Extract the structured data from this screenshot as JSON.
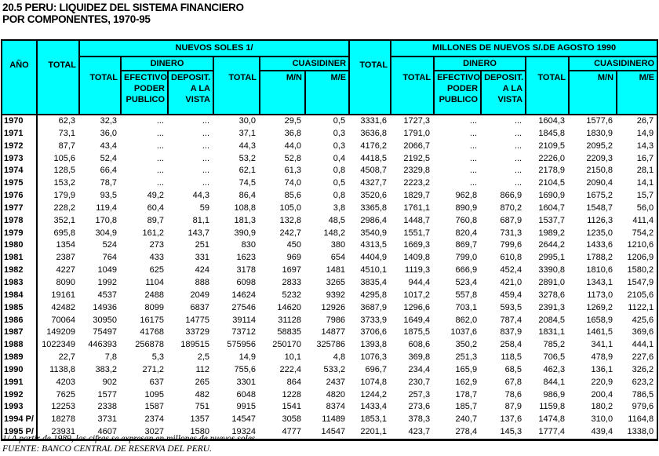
{
  "title": "20.5 PERU: LIQUIDEZ DEL SISTEMA FINANCIERO\nPOR COMPONENTES, 1970-95",
  "colors": {
    "header_bg": "#00FFFF",
    "border": "#000000",
    "text": "#000000",
    "page_bg": "#FFFFFF"
  },
  "table": {
    "header": {
      "ano": "AÑO",
      "total": "TOTAL",
      "group_left": "NUEVOS SOLES 1/",
      "group_right": "MILLONES DE NUEVOS S/.DE AGOSTO 1990",
      "dinero": "DINERO",
      "cuasidinero_left": "CUASIDINER",
      "cuasidinero_right": "CUASIDINERO",
      "sub_total": "TOTAL",
      "efectivo": "EFECTIVO\nPODER\nPUBLICO",
      "deposit": "DEPOSIT.\nA LA\nVISTA",
      "mn": "M/N",
      "me": "M/E"
    },
    "rows": [
      {
        "year": "1970",
        "values": [
          "62,3",
          "32,3",
          "...",
          "...",
          "30,0",
          "29,5",
          "0,5",
          "3331,6",
          "1727,3",
          "...",
          "...",
          "1604,3",
          "1577,6",
          "26,7"
        ]
      },
      {
        "year": "1971",
        "values": [
          "73,1",
          "36,0",
          "...",
          "...",
          "37,1",
          "36,8",
          "0,3",
          "3636,8",
          "1791,0",
          "...",
          "...",
          "1845,8",
          "1830,9",
          "14,9"
        ]
      },
      {
        "year": "1972",
        "values": [
          "87,7",
          "43,4",
          "...",
          "...",
          "44,3",
          "44,0",
          "0,3",
          "4176,2",
          "2066,7",
          "...",
          "...",
          "2109,5",
          "2095,2",
          "14,3"
        ]
      },
      {
        "year": "1973",
        "values": [
          "105,6",
          "52,4",
          "...",
          "...",
          "53,2",
          "52,8",
          "0,4",
          "4418,5",
          "2192,5",
          "...",
          "...",
          "2226,0",
          "2209,3",
          "16,7"
        ]
      },
      {
        "year": "1974",
        "values": [
          "128,5",
          "66,4",
          "...",
          "...",
          "62,1",
          "61,3",
          "0,8",
          "4508,7",
          "2329,8",
          "...",
          "...",
          "2178,9",
          "2150,8",
          "28,1"
        ]
      },
      {
        "year": "1975",
        "values": [
          "153,2",
          "78,7",
          "...",
          "...",
          "74,5",
          "74,0",
          "0,5",
          "4327,7",
          "2223,2",
          "...",
          "...",
          "2104,5",
          "2090,4",
          "14,1"
        ]
      },
      {
        "year": "1976",
        "values": [
          "179,9",
          "93,5",
          "49,2",
          "44,3",
          "86,4",
          "85,6",
          "0,8",
          "3520,6",
          "1829,7",
          "962,8",
          "866,9",
          "1690,9",
          "1675,2",
          "15,7"
        ]
      },
      {
        "year": "1977",
        "values": [
          "228,2",
          "119,4",
          "60,4",
          "59",
          "108,8",
          "105,0",
          "3,8",
          "3365,8",
          "1761,1",
          "890,9",
          "870,2",
          "1604,7",
          "1548,7",
          "56,0"
        ]
      },
      {
        "year": "1978",
        "values": [
          "352,1",
          "170,8",
          "89,7",
          "81,1",
          "181,3",
          "132,8",
          "48,5",
          "2986,4",
          "1448,7",
          "760,8",
          "687,9",
          "1537,7",
          "1126,3",
          "411,4"
        ]
      },
      {
        "year": "1979",
        "values": [
          "695,8",
          "304,9",
          "161,2",
          "143,7",
          "390,9",
          "242,7",
          "148,2",
          "3540,9",
          "1551,7",
          "820,4",
          "731,3",
          "1989,2",
          "1235,0",
          "754,2"
        ]
      },
      {
        "year": "1980",
        "values": [
          "1354",
          "524",
          "273",
          "251",
          "830",
          "450",
          "380",
          "4313,5",
          "1669,3",
          "869,7",
          "799,6",
          "2644,2",
          "1433,6",
          "1210,6"
        ]
      },
      {
        "year": "1981",
        "values": [
          "2387",
          "764",
          "433",
          "331",
          "1623",
          "969",
          "654",
          "4404,9",
          "1409,8",
          "799,0",
          "610,8",
          "2995,1",
          "1788,2",
          "1206,9"
        ]
      },
      {
        "year": "1982",
        "values": [
          "4227",
          "1049",
          "625",
          "424",
          "3178",
          "1697",
          "1481",
          "4510,1",
          "1119,3",
          "666,9",
          "452,4",
          "3390,8",
          "1810,6",
          "1580,2"
        ]
      },
      {
        "year": "1983",
        "values": [
          "8090",
          "1992",
          "1104",
          "888",
          "6098",
          "2833",
          "3265",
          "3835,4",
          "944,4",
          "523,4",
          "421,0",
          "2891,0",
          "1343,1",
          "1547,9"
        ]
      },
      {
        "year": "1984",
        "values": [
          "19161",
          "4537",
          "2488",
          "2049",
          "14624",
          "5232",
          "9392",
          "4295,8",
          "1017,2",
          "557,8",
          "459,4",
          "3278,6",
          "1173,0",
          "2105,6"
        ]
      },
      {
        "year": "1985",
        "values": [
          "42482",
          "14936",
          "8099",
          "6837",
          "27546",
          "14620",
          "12926",
          "3687,9",
          "1296,6",
          "703,1",
          "593,5",
          "2391,3",
          "1269,2",
          "1122,1"
        ]
      },
      {
        "year": "1986",
        "values": [
          "70064",
          "30950",
          "16175",
          "14775",
          "39114",
          "31128",
          "7986",
          "3733,9",
          "1649,4",
          "862,0",
          "787,4",
          "2084,5",
          "1658,9",
          "425,6"
        ]
      },
      {
        "year": "1987",
        "values": [
          "149209",
          "75497",
          "41768",
          "33729",
          "73712",
          "58835",
          "14877",
          "3706,6",
          "1875,5",
          "1037,6",
          "837,9",
          "1831,1",
          "1461,5",
          "369,6"
        ]
      },
      {
        "year": "1988",
        "values": [
          "1022349",
          "446393",
          "256878",
          "189515",
          "575956",
          "250170",
          "325786",
          "1393,8",
          "608,6",
          "350,2",
          "258,4",
          "785,2",
          "341,1",
          "444,1"
        ]
      },
      {
        "year": "1989",
        "values": [
          "22,7",
          "7,8",
          "5,3",
          "2,5",
          "14,9",
          "10,1",
          "4,8",
          "1076,3",
          "369,8",
          "251,3",
          "118,5",
          "706,5",
          "478,9",
          "227,6"
        ]
      },
      {
        "year": "1990",
        "values": [
          "1138,8",
          "383,2",
          "271,2",
          "112",
          "755,6",
          "222,4",
          "533,2",
          "696,7",
          "234,4",
          "165,9",
          "68,5",
          "462,3",
          "136,1",
          "326,2"
        ]
      },
      {
        "year": "1991",
        "values": [
          "4203",
          "902",
          "637",
          "265",
          "3301",
          "864",
          "2437",
          "1074,8",
          "230,7",
          "162,9",
          "67,8",
          "844,1",
          "220,9",
          "623,2"
        ]
      },
      {
        "year": "1992",
        "values": [
          "7625",
          "1577",
          "1095",
          "482",
          "6048",
          "1228",
          "4820",
          "1244,2",
          "257,3",
          "178,7",
          "78,6",
          "986,9",
          "200,4",
          "786,5"
        ]
      },
      {
        "year": "1993",
        "values": [
          "12253",
          "2338",
          "1587",
          "751",
          "9915",
          "1541",
          "8374",
          "1433,4",
          "273,6",
          "185,7",
          "87,9",
          "1159,8",
          "180,2",
          "979,6"
        ]
      },
      {
        "year": "1994 P/",
        "values": [
          "18278",
          "3731",
          "2374",
          "1357",
          "14547",
          "3058",
          "11489",
          "1853,1",
          "378,3",
          "240,7",
          "137,6",
          "1474,8",
          "310,0",
          "1164,8"
        ]
      },
      {
        "year": "1995 P/",
        "values": [
          "23931",
          "4607",
          "3027",
          "1580",
          "19324",
          "4777",
          "14547",
          "2201,1",
          "423,7",
          "278,4",
          "145,3",
          "1777,4",
          "439,4",
          "1338,0"
        ]
      }
    ]
  },
  "footnotes": {
    "note1": "1/ A partir de 1989, las cifras se expresan en millones de nuevos soles.",
    "source": "FUENTE: BANCO CENTRAL DE RESERVA DEL PERU."
  }
}
